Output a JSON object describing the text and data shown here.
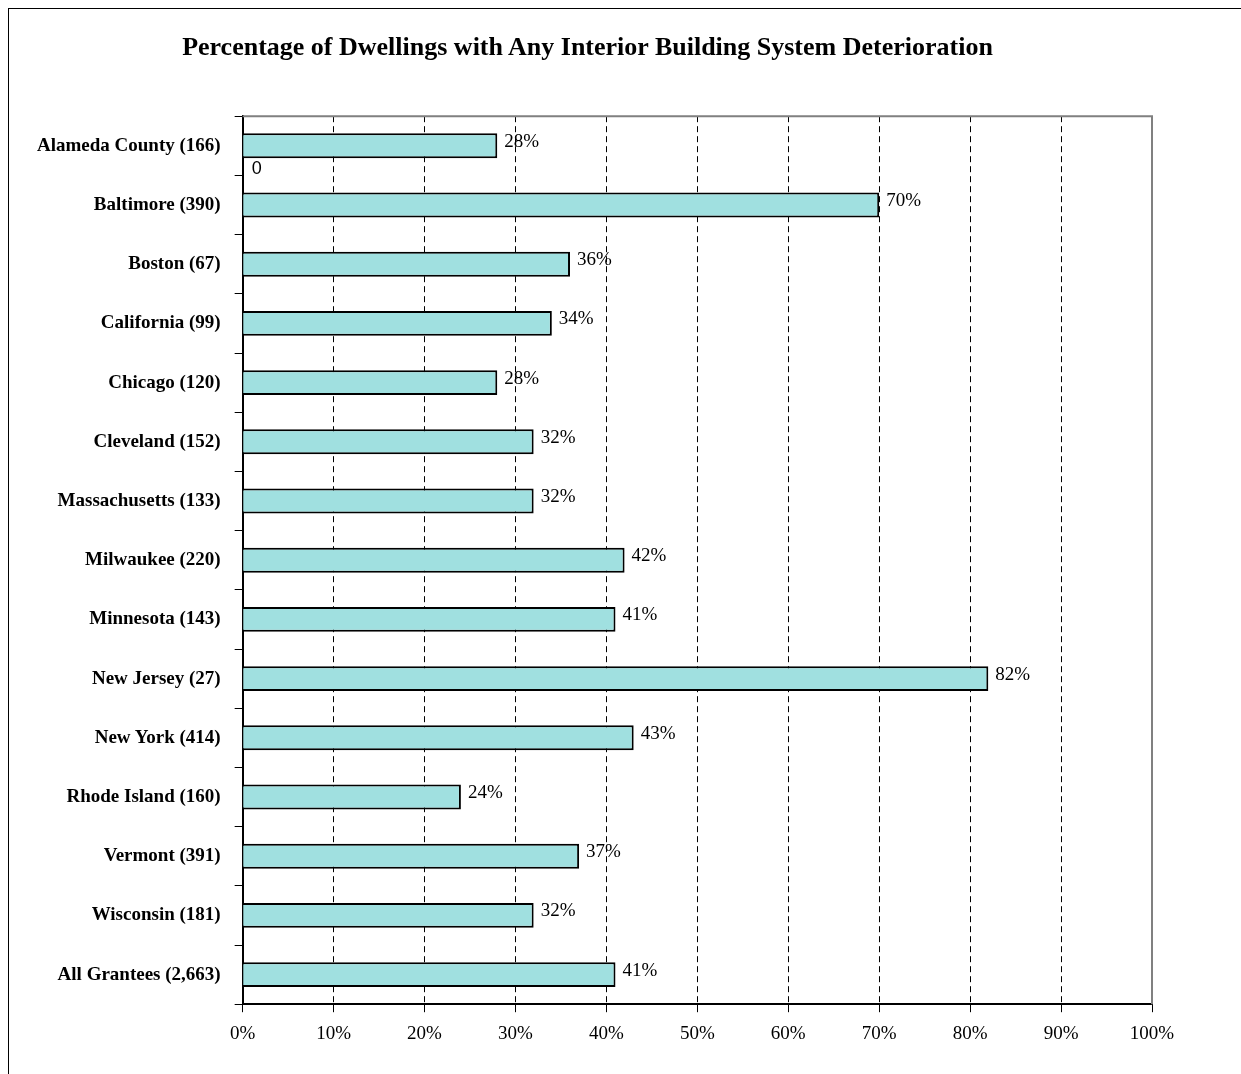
{
  "chart_data": {
    "type": "bar",
    "orientation": "horizontal",
    "title": "Percentage of Dwellings with Any Interior Building System Deterioration",
    "categories": [
      "Alameda County (166)",
      "Baltimore (390)",
      "Boston (67)",
      "California (99)",
      "Chicago (120)",
      "Cleveland (152)",
      "Massachusetts (133)",
      "Milwaukee (220)",
      "Minnesota (143)",
      "New Jersey (27)",
      "New York (414)",
      "Rhode Island (160)",
      "Vermont (391)",
      "Wisconsin (181)",
      "All Grantees (2,663)"
    ],
    "values": [
      28,
      70,
      36,
      34,
      28,
      32,
      32,
      42,
      41,
      82,
      43,
      24,
      37,
      32,
      41
    ],
    "value_labels": [
      "28%",
      "70%",
      "36%",
      "34%",
      "28%",
      "32%",
      "32%",
      "42%",
      "41%",
      "82%",
      "43%",
      "24%",
      "37%",
      "32%",
      "41%"
    ],
    "color": "#a0e0e0",
    "xlim": [
      0,
      100
    ],
    "xticks": [
      {
        "value": 0,
        "label": "0%"
      },
      {
        "value": 10,
        "label": "10%"
      },
      {
        "value": 20,
        "label": "20%"
      },
      {
        "value": 30,
        "label": "30%"
      },
      {
        "value": 40,
        "label": "40%"
      },
      {
        "value": 50,
        "label": "50%"
      },
      {
        "value": 60,
        "label": "60%"
      },
      {
        "value": 70,
        "label": "70%"
      },
      {
        "value": 80,
        "label": "80%"
      },
      {
        "value": 90,
        "label": "90%"
      },
      {
        "value": 100,
        "label": "100%"
      }
    ],
    "grid": "x",
    "legend": false,
    "annotations": [
      "0"
    ]
  }
}
